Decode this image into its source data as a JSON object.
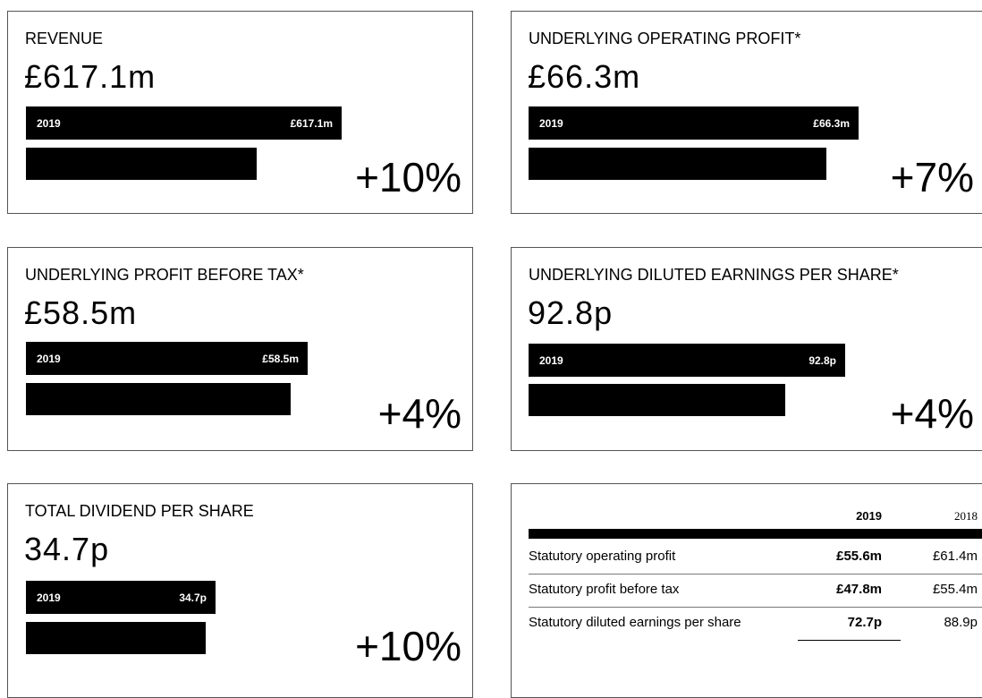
{
  "panels": [
    {
      "title": "REVENUE",
      "value": "£617.1m",
      "bar_label": "2019",
      "bar_value": "£617.1m",
      "change": "+10%"
    },
    {
      "title": "UNDERLYING OPERATING PROFIT*",
      "value": "£66.3m",
      "bar_label": "2019",
      "bar_value": "£66.3m",
      "change": "+7%"
    },
    {
      "title": "UNDERLYING PROFIT BEFORE TAX*",
      "value": "£58.5m",
      "bar_label": "2019",
      "bar_value": "£58.5m",
      "change": "+4%"
    },
    {
      "title": "UNDERLYING DILUTED EARNINGS PER SHARE*",
      "value": "92.8p",
      "bar_label": "2019",
      "bar_value": "92.8p",
      "change": "+4%"
    },
    {
      "title": "TOTAL DIVIDEND PER SHARE",
      "value": "34.7p",
      "bar_label": "2019",
      "bar_value": "34.7p",
      "change": "+10%"
    }
  ],
  "table": {
    "header": [
      "2019",
      "2018"
    ],
    "rows": [
      [
        "Statutory operating profit",
        "£55.6m",
        "£61.4m"
      ],
      [
        "Statutory profit before tax",
        "£47.8m",
        "£55.4m"
      ],
      [
        "Statutory diluted earnings per share",
        "72.7p",
        "88.9p"
      ]
    ]
  }
}
